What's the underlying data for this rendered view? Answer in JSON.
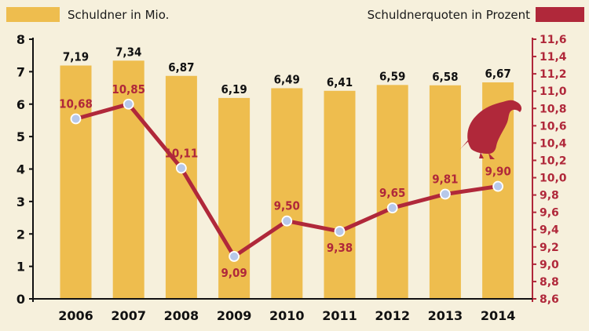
{
  "chart_data": {
    "type": "bar+line",
    "categories": [
      "2006",
      "2007",
      "2008",
      "2009",
      "2010",
      "2011",
      "2012",
      "2013",
      "2014"
    ],
    "series": [
      {
        "name": "Schuldner in Mio.",
        "type": "bar",
        "axis": "left",
        "values": [
          7.19,
          7.34,
          6.87,
          6.19,
          6.49,
          6.41,
          6.59,
          6.58,
          6.67
        ],
        "labels": [
          "7,19",
          "7,34",
          "6,87",
          "6,19",
          "6,49",
          "6,41",
          "6,59",
          "6,58",
          "6,67"
        ],
        "color": "#eebd4e"
      },
      {
        "name": "Schuldnerquoten in Prozent",
        "type": "line",
        "axis": "right",
        "values": [
          10.68,
          10.85,
          10.11,
          9.09,
          9.5,
          9.38,
          9.65,
          9.81,
          9.9
        ],
        "labels": [
          "10,68",
          "10,85",
          "10,11",
          "9,09",
          "9,50",
          "9,38",
          "9,65",
          "9,81",
          "9,90"
        ],
        "color": "#b0283a"
      }
    ],
    "y_left": {
      "ylim": [
        0,
        8
      ],
      "ticks": [
        "0",
        "1",
        "2",
        "3",
        "4",
        "5",
        "6",
        "7",
        "8"
      ]
    },
    "y_right": {
      "ylim": [
        8.6,
        11.6
      ],
      "ticks": [
        "8,6",
        "8,8",
        "9,0",
        "9,2",
        "9,4",
        "9,6",
        "9,8",
        "10,0",
        "10,2",
        "10,4",
        "10,6",
        "10,8",
        "11,0",
        "11,2",
        "11,4",
        "11,6"
      ]
    },
    "legend": {
      "left": "Schuldner in Mio.",
      "right": "Schuldnerquoten in Prozent",
      "placement": "top"
    },
    "grid": false,
    "decoration": "vulture-silhouette",
    "colors": {
      "background": "#f6f0dc",
      "bar": "#eebd4e",
      "line": "#b0283a",
      "marker_fill": "#b7c8ea",
      "axis_right": "#b0283a",
      "text": "#1a1a1a"
    }
  }
}
